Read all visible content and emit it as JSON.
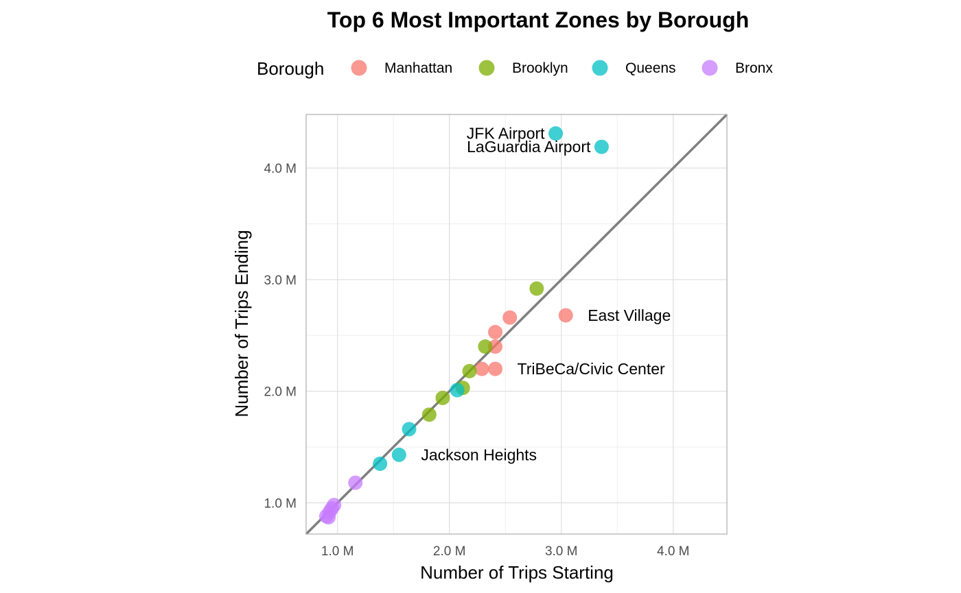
{
  "chart_data": {
    "type": "scatter",
    "title": "Top 6 Most Important Zones by Borough",
    "xlabel": "Number of Trips Starting",
    "ylabel": "Number of Trips Ending",
    "xlim": [
      0.72,
      4.48
    ],
    "ylim": [
      0.72,
      4.48
    ],
    "x_ticks": [
      1.0,
      2.0,
      3.0,
      4.0
    ],
    "x_tick_labels": [
      "1.0 M",
      "2.0 M",
      "3.0 M",
      "4.0 M"
    ],
    "y_ticks": [
      1.0,
      2.0,
      3.0,
      4.0
    ],
    "y_tick_labels": [
      "1.0 M",
      "2.0 M",
      "3.0 M",
      "4.0 M"
    ],
    "units": "millions of trips",
    "grid": true,
    "legend": {
      "title": "Borough",
      "placement": "top"
    },
    "reference_line": {
      "type": "identity",
      "slope": 1,
      "intercept": 0,
      "color": "#7f7f7f"
    },
    "series": [
      {
        "name": "Manhattan",
        "color": "#F8766D",
        "points": [
          {
            "x": 3.04,
            "y": 2.68
          },
          {
            "x": 2.54,
            "y": 2.66
          },
          {
            "x": 2.41,
            "y": 2.53
          },
          {
            "x": 2.41,
            "y": 2.4
          },
          {
            "x": 2.41,
            "y": 2.2
          },
          {
            "x": 2.29,
            "y": 2.2
          }
        ]
      },
      {
        "name": "Brooklyn",
        "color": "#7CAE00",
        "points": [
          {
            "x": 2.78,
            "y": 2.92
          },
          {
            "x": 2.32,
            "y": 2.4
          },
          {
            "x": 2.18,
            "y": 2.18
          },
          {
            "x": 2.12,
            "y": 2.03
          },
          {
            "x": 1.94,
            "y": 1.94
          },
          {
            "x": 1.82,
            "y": 1.79
          }
        ]
      },
      {
        "name": "Queens",
        "color": "#00BFC4",
        "points": [
          {
            "x": 2.95,
            "y": 4.31
          },
          {
            "x": 3.36,
            "y": 4.19
          },
          {
            "x": 2.07,
            "y": 2.01
          },
          {
            "x": 1.64,
            "y": 1.66
          },
          {
            "x": 1.55,
            "y": 1.43
          },
          {
            "x": 1.38,
            "y": 1.35
          }
        ]
      },
      {
        "name": "Bronx",
        "color": "#C77CFF",
        "points": [
          {
            "x": 1.16,
            "y": 1.18
          },
          {
            "x": 0.97,
            "y": 0.98
          },
          {
            "x": 0.93,
            "y": 0.92
          },
          {
            "x": 0.9,
            "y": 0.88
          },
          {
            "x": 0.92,
            "y": 0.87
          },
          {
            "x": 0.95,
            "y": 0.95
          }
        ]
      }
    ],
    "annotations": [
      {
        "text": "JFK Airport",
        "x": 2.95,
        "y": 4.31,
        "anchor": "end"
      },
      {
        "text": "LaGuardia Airport",
        "x": 3.36,
        "y": 4.19,
        "anchor": "end"
      },
      {
        "text": "East Village",
        "x": 3.04,
        "y": 2.68,
        "anchor": "start"
      },
      {
        "text": "TriBeCa/Civic Center",
        "x": 2.41,
        "y": 2.2,
        "anchor": "start"
      },
      {
        "text": "Jackson Heights",
        "x": 1.55,
        "y": 1.43,
        "anchor": "start"
      }
    ]
  }
}
